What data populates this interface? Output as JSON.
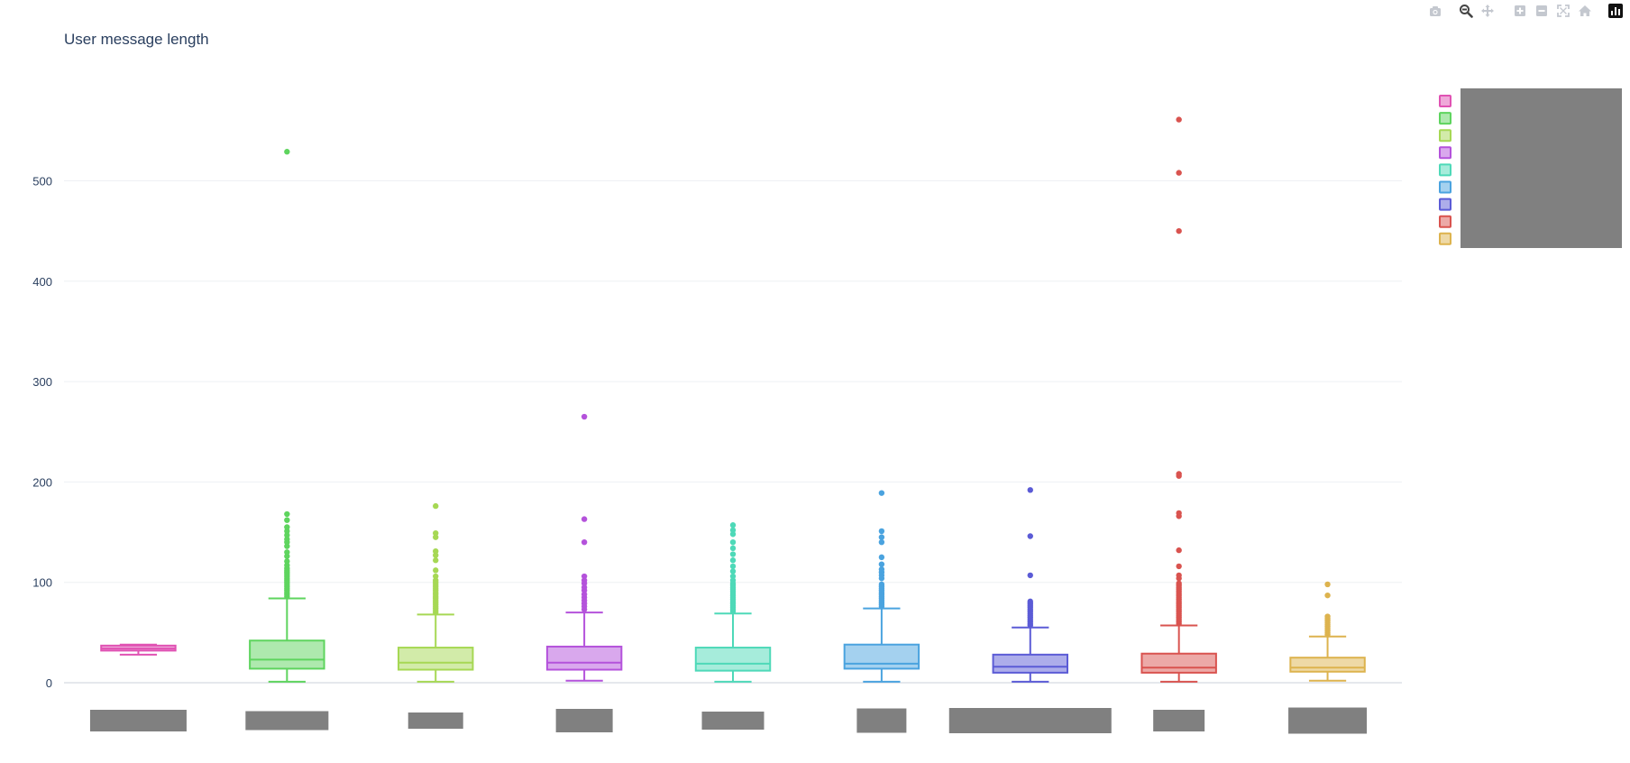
{
  "modebar": {
    "buttons": [
      {
        "icon": "camera-icon",
        "active": false
      },
      {
        "icon": "zoom-icon",
        "active": true
      },
      {
        "icon": "pan-icon",
        "active": false
      },
      {
        "icon": "zoom-in-icon",
        "active": false
      },
      {
        "icon": "zoom-out-icon",
        "active": false
      },
      {
        "icon": "autoscale-icon",
        "active": false
      },
      {
        "icon": "reset-axes-icon",
        "active": false
      },
      {
        "icon": "plotly-logo-icon",
        "active": false
      }
    ]
  },
  "chart_data": {
    "type": "box",
    "title": "User message length",
    "xlabel": "",
    "ylabel": "",
    "ylim": [
      -5,
      590
    ],
    "yticks": [
      0,
      100,
      200,
      300,
      400,
      500
    ],
    "grid": true,
    "legend_placement": "top-right",
    "category_labels_redacted": true,
    "series": [
      {
        "color": "#e052b3",
        "box": {
          "lowerfence": 28,
          "q1": 32,
          "median": 34,
          "q3": 37,
          "upperfence": 38
        },
        "outliers": []
      },
      {
        "color": "#5ed45e",
        "box": {
          "lowerfence": 1,
          "q1": 14,
          "median": 23,
          "q3": 42,
          "upperfence": 84
        },
        "outliers": [
          86,
          88,
          90,
          92,
          94,
          96,
          98,
          100,
          102,
          104,
          106,
          108,
          110,
          112,
          114,
          117,
          121,
          126,
          130,
          136,
          140,
          143,
          147,
          151,
          155,
          162,
          168,
          529
        ]
      },
      {
        "color": "#a6d854",
        "box": {
          "lowerfence": 1,
          "q1": 13,
          "median": 20,
          "q3": 35,
          "upperfence": 68
        },
        "outliers": [
          70,
          72,
          74,
          76,
          78,
          80,
          82,
          84,
          86,
          88,
          90,
          92,
          94,
          96,
          98,
          100,
          102,
          106,
          112,
          122,
          127,
          131,
          145,
          149,
          176
        ]
      },
      {
        "color": "#b452db",
        "box": {
          "lowerfence": 2,
          "q1": 13,
          "median": 20,
          "q3": 36,
          "upperfence": 70
        },
        "outliers": [
          73,
          76,
          79,
          82,
          85,
          88,
          92,
          95,
          99,
          102,
          106,
          140,
          163,
          265
        ]
      },
      {
        "color": "#4ed9b8",
        "box": {
          "lowerfence": 1,
          "q1": 12,
          "median": 19,
          "q3": 35,
          "upperfence": 69
        },
        "outliers": [
          71,
          73,
          75,
          77,
          79,
          81,
          83,
          85,
          87,
          89,
          91,
          93,
          95,
          97,
          99,
          102,
          106,
          111,
          116,
          122,
          128,
          134,
          140,
          148,
          152,
          157
        ]
      },
      {
        "color": "#4aa3df",
        "box": {
          "lowerfence": 1,
          "q1": 14,
          "median": 19,
          "q3": 38,
          "upperfence": 74
        },
        "outliers": [
          76,
          78,
          80,
          82,
          84,
          86,
          88,
          90,
          92,
          94,
          96,
          98,
          104,
          107,
          110,
          113,
          118,
          125,
          140,
          145,
          151,
          189
        ]
      },
      {
        "color": "#5b5bd6",
        "box": {
          "lowerfence": 1,
          "q1": 10,
          "median": 16,
          "q3": 28,
          "upperfence": 55
        },
        "outliers": [
          57,
          59,
          61,
          63,
          65,
          67,
          69,
          71,
          73,
          75,
          77,
          79,
          81,
          107,
          146,
          192
        ]
      },
      {
        "color": "#d9534f",
        "box": {
          "lowerfence": 1,
          "q1": 10,
          "median": 15,
          "q3": 29,
          "upperfence": 57
        },
        "outliers": [
          59,
          61,
          63,
          65,
          67,
          69,
          71,
          73,
          75,
          77,
          79,
          81,
          83,
          85,
          87,
          89,
          91,
          93,
          95,
          97,
          99,
          104,
          107,
          116,
          132,
          166,
          169,
          206,
          208,
          450,
          508,
          561
        ]
      },
      {
        "color": "#ddb34e",
        "box": {
          "lowerfence": 2,
          "q1": 11,
          "median": 15,
          "q3": 25,
          "upperfence": 46
        },
        "outliers": [
          48,
          50,
          52,
          54,
          56,
          58,
          60,
          62,
          64,
          66,
          87,
          98
        ]
      }
    ]
  }
}
